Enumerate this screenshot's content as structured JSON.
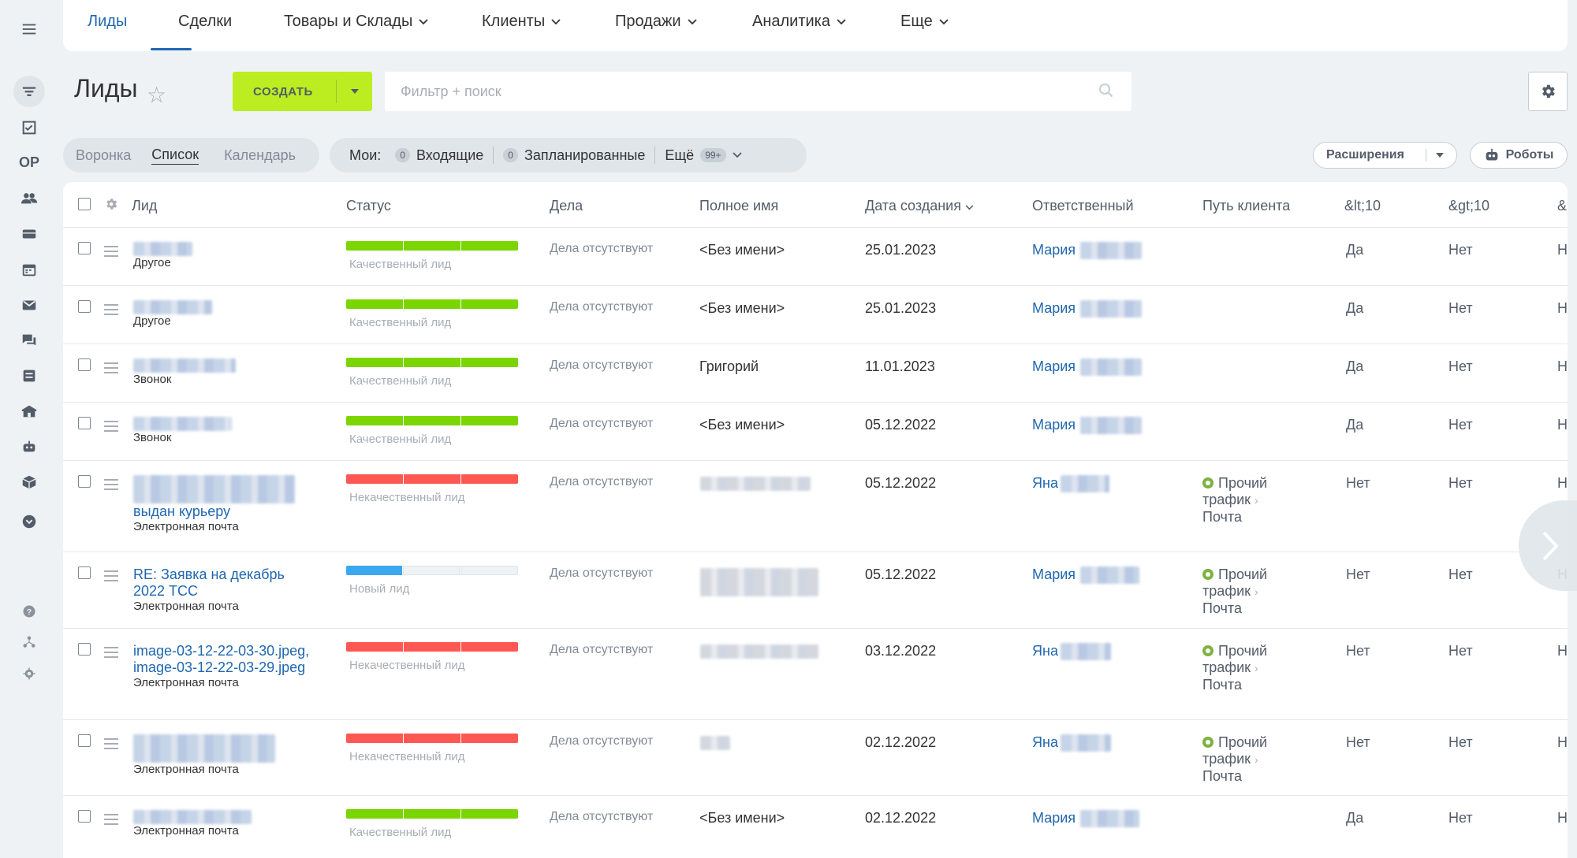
{
  "topnav": {
    "items": [
      {
        "label": "Лиды",
        "active": true,
        "dropdown": false
      },
      {
        "label": "Сделки",
        "active": false,
        "dropdown": false
      },
      {
        "label": "Товары и Склады",
        "active": false,
        "dropdown": true
      },
      {
        "label": "Клиенты",
        "active": false,
        "dropdown": true
      },
      {
        "label": "Продажи",
        "active": false,
        "dropdown": true
      },
      {
        "label": "Аналитика",
        "active": false,
        "dropdown": true
      },
      {
        "label": "Еще",
        "active": false,
        "dropdown": true
      }
    ]
  },
  "rail": {
    "user_initials": "ОР"
  },
  "header": {
    "title": "Лиды",
    "create_label": "СОЗДАТЬ",
    "search_placeholder": "Фильтр + поиск"
  },
  "views": {
    "items": [
      "Воронка",
      "Список",
      "Календарь"
    ],
    "active": "Список"
  },
  "counters": {
    "label": "Мои:",
    "incoming_count": "0",
    "incoming_label": "Входящие",
    "planned_count": "0",
    "planned_label": "Запланированные",
    "more_label": "Ещё",
    "more_count": "99+"
  },
  "toolbar": {
    "extensions_label": "Расширения",
    "robots_label": "Роботы"
  },
  "columns": [
    "Лид",
    "Статус",
    "Дела",
    "Полное имя",
    "Дата создания",
    "Ответственный",
    "Путь клиента",
    "&lt;10",
    "&gt;10",
    "&"
  ],
  "rows": [
    {
      "lead": "",
      "source": "Другое",
      "status": "Качественный лид",
      "status_color": "#7bd500",
      "activity": "Дела отсутствуют",
      "name": "<Без имени>",
      "date": "25.01.2023",
      "resp": "Мария",
      "path": null,
      "lt10": "Да",
      "gt10": "Нет",
      "last": "Н"
    },
    {
      "lead": "",
      "source": "Другое",
      "status": "Качественный лид",
      "status_color": "#7bd500",
      "activity": "Дела отсутствуют",
      "name": "<Без имени>",
      "date": "25.01.2023",
      "resp": "Мария",
      "path": null,
      "lt10": "Да",
      "gt10": "Нет",
      "last": "Н"
    },
    {
      "lead": "",
      "source": "Звонок",
      "status": "Качественный лид",
      "status_color": "#7bd500",
      "activity": "Дела отсутствуют",
      "name": "Григорий",
      "date": "11.01.2023",
      "resp": "Мария",
      "path": null,
      "lt10": "Да",
      "gt10": "Нет",
      "last": "Н"
    },
    {
      "lead": "",
      "source": "Звонок",
      "status": "Качественный лид",
      "status_color": "#7bd500",
      "activity": "Дела отсутствуют",
      "name": "<Без имени>",
      "date": "05.12.2022",
      "resp": "Мария",
      "path": null,
      "lt10": "Да",
      "gt10": "Нет",
      "last": "Н"
    },
    {
      "lead": "выдан курьеру",
      "source": "Электронная почта",
      "status": "Некачественный лид",
      "status_color": "#ff5752",
      "activity": "Дела отсутствуют",
      "name": "",
      "date": "05.12.2022",
      "resp": "Яна",
      "path": {
        "line1": "Прочий",
        "line2": "трафик",
        "line3": "Почта"
      },
      "lt10": "Нет",
      "gt10": "Нет",
      "last": "Н"
    },
    {
      "lead": "RE: Заявка на декабрь 2022 ТСС",
      "source": "Электронная почта",
      "status": "Новый лид",
      "status_color": "#39a8ef",
      "activity": "Дела отсутствуют",
      "name": "",
      "date": "05.12.2022",
      "resp": "Мария",
      "path": {
        "line1": "Прочий",
        "line2": "трафик",
        "line3": "Почта"
      },
      "lt10": "Нет",
      "gt10": "Нет",
      "last": "Н"
    },
    {
      "lead": "image-03-12-22-03-30.jpeg, image-03-12-22-03-29.jpeg",
      "source": "Электронная почта",
      "status": "Некачественный лид",
      "status_color": "#ff5752",
      "activity": "Дела отсутствуют",
      "name": "",
      "date": "03.12.2022",
      "resp": "Яна",
      "path": {
        "line1": "Прочий",
        "line2": "трафик",
        "line3": "Почта"
      },
      "lt10": "Нет",
      "gt10": "Нет",
      "last": "Н"
    },
    {
      "lead": "",
      "source": "Электронная почта",
      "status": "Некачественный лид",
      "status_color": "#ff5752",
      "activity": "Дела отсутствуют",
      "name": "",
      "date": "02.12.2022",
      "resp": "Яна",
      "path": {
        "line1": "Прочий",
        "line2": "трафик",
        "line3": "Почта"
      },
      "lt10": "Нет",
      "gt10": "Нет",
      "last": "Н"
    },
    {
      "lead": "",
      "source": "Электронная почта",
      "status": "Качественный лид",
      "status_color": "#7bd500",
      "activity": "Дела отсутствуют",
      "name": "<Без имени>",
      "date": "02.12.2022",
      "resp": "Мария",
      "path": null,
      "lt10": "Да",
      "gt10": "Нет",
      "last": "Н"
    }
  ]
}
